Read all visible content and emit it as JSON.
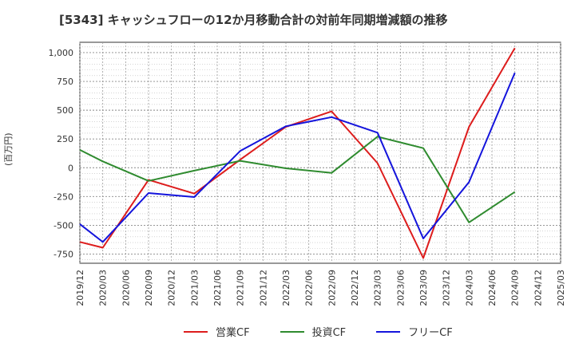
{
  "chart_data": {
    "type": "line",
    "title": "[5343]  キャッシュフローの12か月移動合計の対前年同期増減額の推移",
    "ylabel": "(百万円)",
    "xlabel": "",
    "x": [
      "2019/12",
      "2020/03",
      "2020/06",
      "2020/09",
      "2020/12",
      "2021/03",
      "2021/06",
      "2021/09",
      "2021/12",
      "2022/03",
      "2022/06",
      "2022/09",
      "2022/12",
      "2023/03",
      "2023/06",
      "2023/09",
      "2023/12",
      "2024/03",
      "2024/06",
      "2024/09",
      "2024/12",
      "2025/03"
    ],
    "ylim": [
      -830,
      1090
    ],
    "yticks": [
      1000,
      750,
      500,
      250,
      0,
      -250,
      -500,
      -750
    ],
    "ytick_labels": [
      "1,000",
      "750",
      "500",
      "250",
      "0",
      "-250",
      "-500",
      "-750"
    ],
    "grid": true,
    "legend_position": "bottom",
    "series": [
      {
        "name": "営業CF",
        "color": "#dd1c1c",
        "points": [
          [
            "2019/12",
            -645
          ],
          [
            "2020/03",
            -695
          ],
          [
            "2020/09",
            -105
          ],
          [
            "2021/03",
            -225
          ],
          [
            "2021/09",
            70
          ],
          [
            "2022/03",
            355
          ],
          [
            "2022/09",
            490
          ],
          [
            "2023/03",
            40
          ],
          [
            "2023/09",
            -785
          ],
          [
            "2024/03",
            355
          ],
          [
            "2024/09",
            1040
          ]
        ]
      },
      {
        "name": "投資CF",
        "color": "#2f8b2f",
        "points": [
          [
            "2019/12",
            155
          ],
          [
            "2020/03",
            55
          ],
          [
            "2020/09",
            -115
          ],
          [
            "2021/03",
            -25
          ],
          [
            "2021/09",
            60
          ],
          [
            "2022/03",
            -5
          ],
          [
            "2022/09",
            -45
          ],
          [
            "2023/03",
            270
          ],
          [
            "2023/09",
            170
          ],
          [
            "2024/03",
            -475
          ],
          [
            "2024/09",
            -210
          ]
        ]
      },
      {
        "name": "フリーCF",
        "color": "#1414dc",
        "points": [
          [
            "2019/12",
            -490
          ],
          [
            "2020/03",
            -645
          ],
          [
            "2020/09",
            -220
          ],
          [
            "2021/03",
            -255
          ],
          [
            "2021/09",
            145
          ],
          [
            "2022/03",
            360
          ],
          [
            "2022/09",
            440
          ],
          [
            "2023/03",
            305
          ],
          [
            "2023/09",
            -615
          ],
          [
            "2024/03",
            -125
          ],
          [
            "2024/09",
            825
          ]
        ]
      }
    ]
  }
}
